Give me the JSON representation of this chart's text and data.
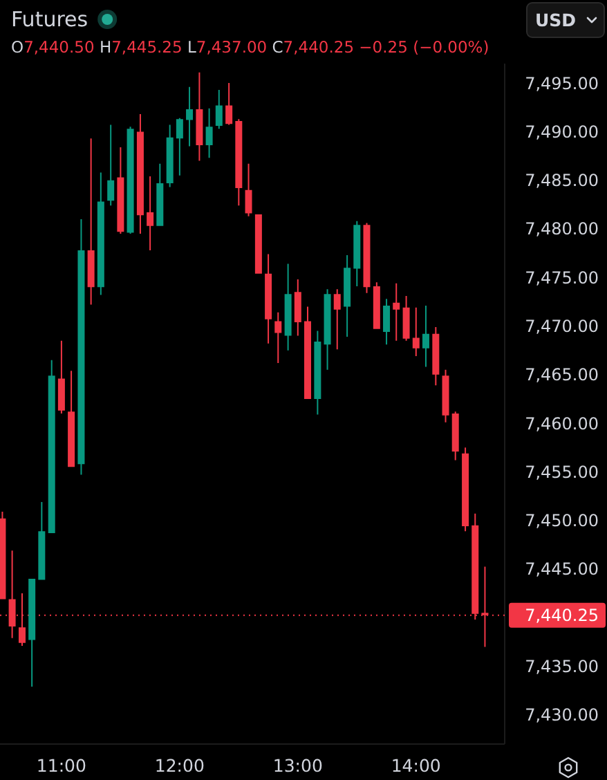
{
  "chart_data": {
    "type": "candlestick",
    "title": "Futures",
    "subtitle": "O7,440.50 H7,445.25 L7,437.00 C7,440.25 −0.25 (−0.00%)",
    "x": [
      10.5,
      10.583,
      10.667,
      10.75,
      10.833,
      10.917,
      11,
      11.083,
      11.167,
      11.25,
      11.333,
      11.417,
      11.5,
      11.583,
      11.667,
      11.75,
      11.833,
      11.917,
      12,
      12.083,
      12.167,
      12.25,
      12.333,
      12.417,
      12.5,
      12.583,
      12.667,
      12.75,
      12.833,
      12.917,
      13,
      13.083,
      13.167,
      13.25,
      13.333,
      13.417,
      13.5,
      13.583,
      13.667,
      13.75,
      13.833,
      13.917,
      14,
      14.083,
      14.167,
      14.25,
      14.333,
      14.417,
      14.5,
      14.583
    ],
    "ohlc": [
      [
        7450.2,
        7450.9,
        7441.9,
        7441.9
      ],
      [
        7441.9,
        7446.9,
        7437.9,
        7439.1
      ],
      [
        7439.0,
        7442.5,
        7437.1,
        7437.4
      ],
      [
        7437.7,
        7444.0,
        7432.9,
        7444.0
      ],
      [
        7443.9,
        7451.9,
        7443.9,
        7448.9
      ],
      [
        7448.7,
        7466.5,
        7448.7,
        7464.9
      ],
      [
        7464.6,
        7468.5,
        7461.0,
        7461.3
      ],
      [
        7461.2,
        7465.4,
        7455.5,
        7455.5
      ],
      [
        7455.8,
        7481.0,
        7454.7,
        7477.8
      ],
      [
        7477.8,
        7489.3,
        7472.2,
        7474.0
      ],
      [
        7474.0,
        7485.8,
        7473.2,
        7482.8
      ],
      [
        7482.9,
        7490.7,
        7482.4,
        7485.0
      ],
      [
        7485.3,
        7488.4,
        7479.5,
        7479.7
      ],
      [
        7479.6,
        7490.5,
        7479.5,
        7490.3
      ],
      [
        7490.0,
        7491.8,
        7479.5,
        7481.4
      ],
      [
        7481.7,
        7485.4,
        7477.8,
        7480.3
      ],
      [
        7480.3,
        7486.7,
        7480.3,
        7484.7
      ],
      [
        7484.7,
        7490.7,
        7484.3,
        7489.4
      ],
      [
        7489.3,
        7491.4,
        7485.5,
        7491.3
      ],
      [
        7491.2,
        7494.6,
        7488.5,
        7492.3
      ],
      [
        7492.3,
        7496.1,
        7487.0,
        7488.6
      ],
      [
        7488.6,
        7492.4,
        7487.3,
        7490.5
      ],
      [
        7490.6,
        7494.3,
        7490.3,
        7492.7
      ],
      [
        7492.7,
        7495.0,
        7490.7,
        7490.8
      ],
      [
        7491.1,
        7491.3,
        7482.4,
        7484.2
      ],
      [
        7484.0,
        7486.7,
        7481.3,
        7481.6
      ],
      [
        7481.5,
        7481.5,
        7475.4,
        7475.4
      ],
      [
        7475.4,
        7477.4,
        7468.2,
        7470.7
      ],
      [
        7470.5,
        7471.4,
        7466.2,
        7469.3
      ],
      [
        7469.0,
        7476.4,
        7467.5,
        7473.3
      ],
      [
        7473.5,
        7474.8,
        7469.0,
        7470.4
      ],
      [
        7470.5,
        7472.0,
        7462.5,
        7462.5
      ],
      [
        7462.5,
        7469.5,
        7460.9,
        7468.4
      ],
      [
        7468.1,
        7473.8,
        7465.5,
        7473.3
      ],
      [
        7473.3,
        7473.8,
        7467.6,
        7471.7
      ],
      [
        7472.0,
        7477.3,
        7468.9,
        7476.0
      ],
      [
        7475.9,
        7480.8,
        7474.1,
        7480.4
      ],
      [
        7480.4,
        7480.6,
        7473.4,
        7474.0
      ],
      [
        7474.1,
        7474.5,
        7469.7,
        7469.7
      ],
      [
        7469.4,
        7472.8,
        7468.1,
        7472.1
      ],
      [
        7472.4,
        7474.4,
        7468.5,
        7471.7
      ],
      [
        7471.9,
        7473.1,
        7468.5,
        7468.7
      ],
      [
        7468.8,
        7471.9,
        7466.9,
        7467.7
      ],
      [
        7467.7,
        7472.1,
        7465.8,
        7469.2
      ],
      [
        7469.2,
        7469.9,
        7463.9,
        7465.0
      ],
      [
        7464.9,
        7465.5,
        7460.1,
        7460.8
      ],
      [
        7461.0,
        7461.2,
        7456.2,
        7457.1
      ],
      [
        7456.9,
        7457.5,
        7448.9,
        7449.4
      ],
      [
        7449.5,
        7450.7,
        7439.8,
        7440.4
      ],
      [
        7440.5,
        7445.25,
        7437.0,
        7440.25
      ]
    ],
    "colors": [
      "#f23645",
      "#f23645",
      "#f23645",
      "#089981",
      "#089981",
      "#089981",
      "#f23645",
      "#f23645",
      "#089981",
      "#f23645",
      "#089981",
      "#089981",
      "#f23645",
      "#089981",
      "#f23645",
      "#f23645",
      "#089981",
      "#089981",
      "#089981",
      "#089981",
      "#f23645",
      "#089981",
      "#089981",
      "#f23645",
      "#f23645",
      "#f23645",
      "#f23645",
      "#f23645",
      "#f23645",
      "#089981",
      "#f23645",
      "#f23645",
      "#089981",
      "#089981",
      "#f23645",
      "#089981",
      "#089981",
      "#f23645",
      "#f23645",
      "#089981",
      "#f23645",
      "#f23645",
      "#f23645",
      "#089981",
      "#f23645",
      "#f23645",
      "#f23645",
      "#f23645",
      "#f23645",
      "#f23645"
    ],
    "xlim": [
      10.48,
      14.75
    ],
    "xticks": [
      {
        "value": 11,
        "label": "11:00"
      },
      {
        "value": 12,
        "label": "12:00"
      },
      {
        "value": 13,
        "label": "13:00"
      },
      {
        "value": 14,
        "label": "14:00"
      }
    ],
    "ylim": [
      7427,
      7497
    ],
    "yticks": [
      {
        "value": 7430,
        "label": "7,430.00"
      },
      {
        "value": 7435,
        "label": "7,435.00"
      },
      {
        "value": 7445,
        "label": "7,445.00"
      },
      {
        "value": 7450,
        "label": "7,450.00"
      },
      {
        "value": 7455,
        "label": "7,455.00"
      },
      {
        "value": 7460,
        "label": "7,460.00"
      },
      {
        "value": 7465,
        "label": "7,465.00"
      },
      {
        "value": 7470,
        "label": "7,470.00"
      },
      {
        "value": 7475,
        "label": "7,475.00"
      },
      {
        "value": 7480,
        "label": "7,480.00"
      },
      {
        "value": 7485,
        "label": "7,485.00"
      },
      {
        "value": 7490,
        "label": "7,490.00"
      },
      {
        "value": 7495,
        "label": "7,495.00"
      }
    ],
    "ref_lines": [
      {
        "axis": "y",
        "value": 7440.25,
        "label": "7,440.25",
        "color": "#f23645",
        "line_style": "dotted"
      }
    ],
    "annotations": [
      "USD"
    ]
  }
}
